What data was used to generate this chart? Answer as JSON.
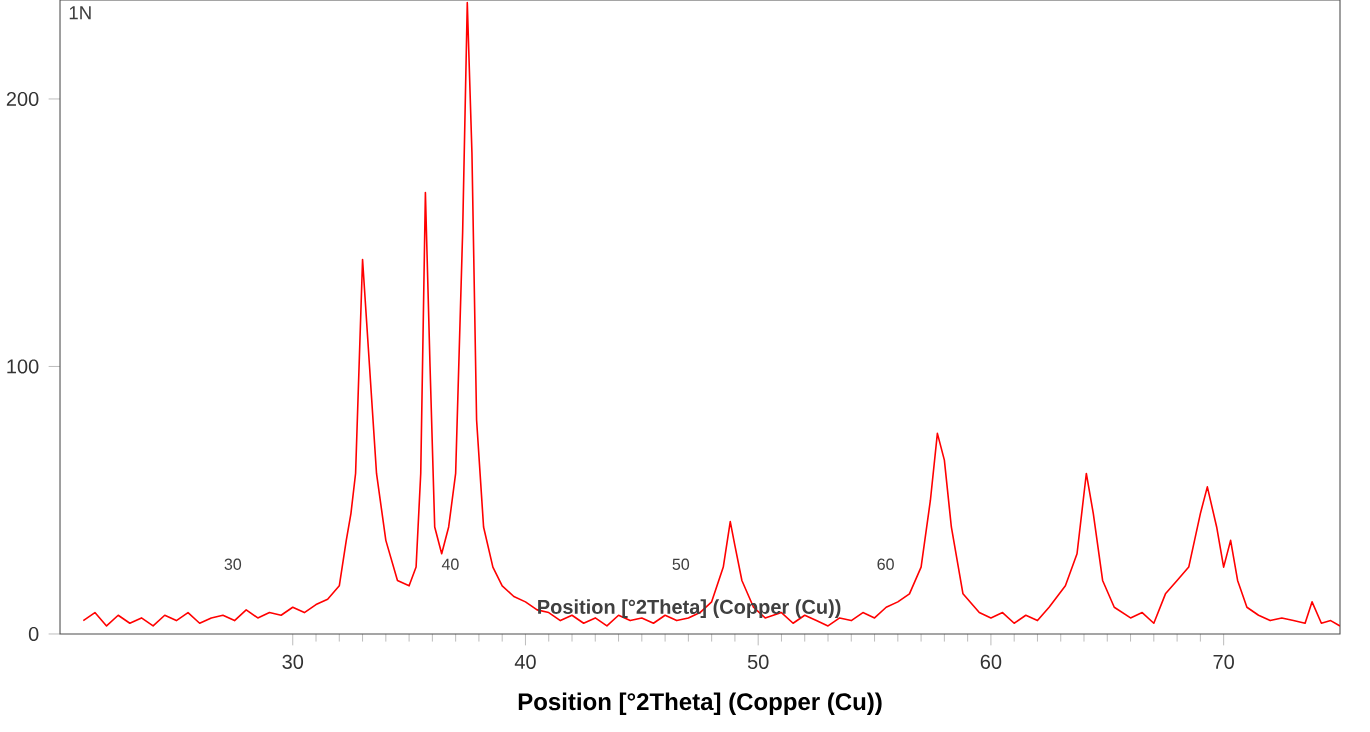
{
  "chart_data": {
    "type": "line",
    "xlabel": "Position [°2Theta]  (Copper (Cu))",
    "annotations": [
      "1N",
      "30",
      "40",
      "50",
      "60",
      "Position [°2Theta]  (Copper (Cu))"
    ],
    "xlim": [
      20,
      75
    ],
    "ylim": [
      0,
      237
    ],
    "xticks": [
      30,
      40,
      50,
      60,
      70
    ],
    "yticks": [
      0,
      100,
      200
    ],
    "grid": false,
    "marker": "none",
    "line_style": "solid",
    "series": [
      {
        "color": "#ff0000",
        "x": [
          21,
          21.5,
          22,
          22.5,
          23,
          23.5,
          24,
          24.5,
          25,
          25.5,
          26,
          26.5,
          27,
          27.5,
          28,
          28.5,
          29,
          29.5,
          30,
          30.5,
          31,
          31.5,
          32,
          32.3,
          32.5,
          32.7,
          33,
          33.3,
          33.6,
          34,
          34.5,
          35,
          35.3,
          35.5,
          35.7,
          35.9,
          36.1,
          36.4,
          36.7,
          37,
          37.3,
          37.5,
          37.7,
          37.9,
          38.2,
          38.6,
          39,
          39.5,
          40,
          40.5,
          41,
          41.5,
          42,
          42.5,
          43,
          43.5,
          44,
          44.5,
          45,
          45.5,
          46,
          46.5,
          47,
          47.5,
          48,
          48.5,
          48.8,
          49,
          49.3,
          49.8,
          50.3,
          51,
          51.5,
          52,
          52.5,
          53,
          53.5,
          54,
          54.5,
          55,
          55.5,
          56,
          56.5,
          57,
          57.4,
          57.7,
          58,
          58.3,
          58.8,
          59.5,
          60,
          60.5,
          61,
          61.5,
          62,
          62.5,
          63.2,
          63.7,
          64.1,
          64.4,
          64.8,
          65.3,
          66,
          66.5,
          67,
          67.5,
          68,
          68.5,
          69,
          69.3,
          69.7,
          70,
          70.3,
          70.6,
          71,
          71.5,
          72,
          72.5,
          73,
          73.5,
          73.8,
          74.2,
          74.6,
          75
        ],
        "values": [
          5,
          8,
          3,
          7,
          4,
          6,
          3,
          7,
          5,
          8,
          4,
          6,
          7,
          5,
          9,
          6,
          8,
          7,
          10,
          8,
          11,
          13,
          18,
          35,
          45,
          60,
          140,
          100,
          60,
          35,
          20,
          18,
          25,
          60,
          165,
          100,
          40,
          30,
          40,
          60,
          150,
          236,
          180,
          80,
          40,
          25,
          18,
          14,
          12,
          9,
          8,
          5,
          7,
          4,
          6,
          3,
          7,
          5,
          6,
          4,
          7,
          5,
          6,
          8,
          12,
          25,
          42,
          33,
          20,
          10,
          6,
          8,
          4,
          7,
          5,
          3,
          6,
          5,
          8,
          6,
          10,
          12,
          15,
          25,
          50,
          75,
          65,
          40,
          15,
          8,
          6,
          8,
          4,
          7,
          5,
          10,
          18,
          30,
          60,
          45,
          20,
          10,
          6,
          8,
          4,
          15,
          20,
          25,
          45,
          55,
          40,
          25,
          35,
          20,
          10,
          7,
          5,
          6,
          5,
          4,
          12,
          4,
          5,
          3
        ]
      }
    ]
  }
}
